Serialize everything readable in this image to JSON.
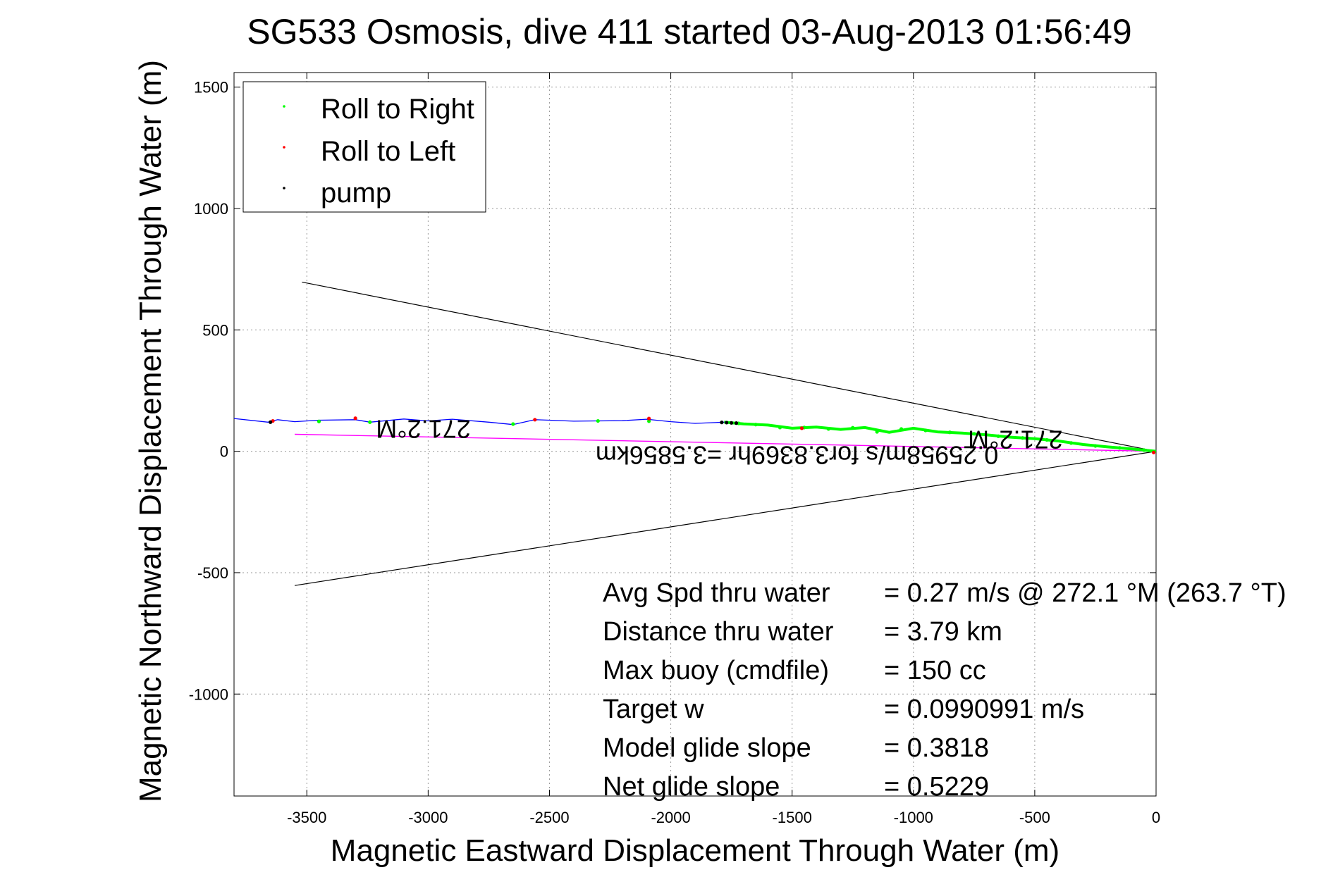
{
  "chart_data": {
    "type": "scatter",
    "title": "SG533 Osmosis, dive 411 started 03-Aug-2013 01:56:49",
    "xlabel": "Magnetic Eastward Displacement Through Water (m)",
    "ylabel": "Magnetic Northward Displacement Through Water (m)",
    "xlim": [
      -3800,
      0
    ],
    "ylim": [
      -1420,
      1560
    ],
    "grid": true,
    "x_ticks": [
      "-3500",
      "-3000",
      "-2500",
      "-2000",
      "-1500",
      "-1000",
      "-500",
      "0"
    ],
    "y_ticks": [
      "1500",
      "1000",
      "500",
      "0",
      "-500",
      "-1000"
    ],
    "legend": {
      "location": "top-left",
      "entries": [
        {
          "label": "Roll to Right",
          "color": "#00ff00"
        },
        {
          "label": "Roll to Left",
          "color": "#ff0000"
        },
        {
          "label": "pump",
          "color": "#000000"
        }
      ]
    },
    "colors": {
      "track": "#0000ff",
      "roll_right": "#00ff00",
      "roll_left": "#ff0000",
      "pump": "#000000",
      "heading_line": "#ff00ff",
      "cone": "#000000"
    },
    "series": [
      {
        "name": "",
        "color": "#0000ff",
        "x": [
          0,
          -100,
          -200,
          -300,
          -400,
          -500,
          -600,
          -700,
          -800,
          -900,
          -1000,
          -1100,
          -1200,
          -1300,
          -1400,
          -1500,
          -1600,
          -1700,
          -1780,
          -1900,
          -2000,
          -2100,
          -2200,
          -2300,
          -2400,
          -2500,
          -2560,
          -2650,
          -2750,
          -2900,
          -3000,
          -3100,
          -3240,
          -3300,
          -3450,
          -3550,
          -3620,
          -3660,
          -3800
        ],
        "y": [
          0,
          10,
          18,
          28,
          42,
          52,
          58,
          68,
          75,
          80,
          95,
          78,
          98,
          90,
          100,
          95,
          108,
          113,
          120,
          115,
          122,
          132,
          126,
          125,
          124,
          128,
          130,
          110,
          120,
          132,
          125,
          133,
          120,
          130,
          128,
          122,
          130,
          120,
          135
        ]
      },
      {
        "name": "Roll to Right",
        "color": "#00ff00",
        "x": [
          -50,
          -150,
          -250,
          -350,
          -450,
          -550,
          -650,
          -750,
          -850,
          -950,
          -1050,
          -1150,
          -1250,
          -1350,
          -1450,
          -1550,
          -1650,
          -1720,
          -2090,
          -2300,
          -2650,
          -3240,
          -3450
        ],
        "y": [
          5,
          14,
          22,
          34,
          47,
          55,
          62,
          72,
          78,
          86,
          92,
          80,
          97,
          92,
          98,
          98,
          110,
          115,
          124,
          125,
          112,
          120,
          123
        ]
      },
      {
        "name": "Roll to Left",
        "color": "#ff0000",
        "x": [
          -1460,
          -2090,
          -2560,
          -3300,
          -3640,
          -10
        ],
        "y": [
          95,
          135,
          130,
          136,
          125,
          -5
        ]
      },
      {
        "name": "pump",
        "color": "#000000",
        "x": [
          -1730,
          -1750,
          -1770,
          -1790,
          -3650
        ],
        "y": [
          116,
          117,
          118,
          119,
          120
        ]
      }
    ],
    "heading_line": {
      "x": [
        0,
        -3550
      ],
      "y": [
        0,
        70
      ]
    },
    "cone": [
      {
        "x": [
          0,
          -3520
        ],
        "y": [
          0,
          697
        ]
      },
      {
        "x": [
          0,
          -3550
        ],
        "y": [
          0,
          -553
        ]
      }
    ],
    "annotations": [
      {
        "text": "271.2°M",
        "x": -3020,
        "y": 128,
        "rotated": true
      },
      {
        "text": "271.2°M",
        "x": -580,
        "y": 85,
        "rotated": true
      },
      {
        "text": "0.25958m/s for3.8369hr =3.5856km",
        "x": -1480,
        "y": 20,
        "rotated": true
      }
    ],
    "stats": [
      {
        "label": "Avg Spd thru water",
        "value": "=  0.27 m/s @ 272.1 °M (263.7 °T)"
      },
      {
        "label": "Distance thru water",
        "value": "=  3.79 km"
      },
      {
        "label": "Max buoy (cmdfile)",
        "value": "= 150 cc"
      },
      {
        "label": "Target w",
        "value": "= 0.0990991 m/s"
      },
      {
        "label": "Model glide slope",
        "value": "= 0.3818"
      },
      {
        "label": "Net glide slope",
        "value": "= 0.5229"
      }
    ]
  }
}
